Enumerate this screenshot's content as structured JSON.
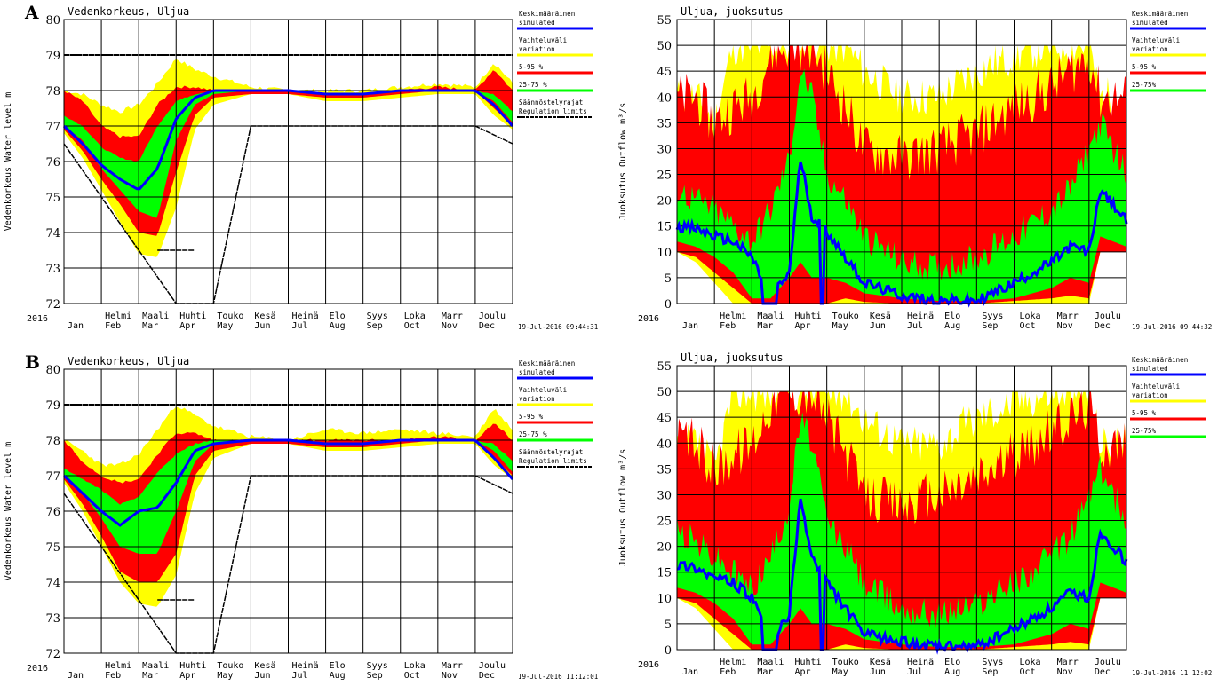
{
  "colors": {
    "variation": "#ffff00",
    "p5_95": "#ff0000",
    "p25_75": "#00ff00",
    "simulated": "#0000ff",
    "limits": "#000000",
    "grid": "#000000"
  },
  "months": [
    {
      "fi": "",
      "en": "Jan"
    },
    {
      "fi": "Helmi",
      "en": "Feb"
    },
    {
      "fi": "Maali",
      "en": "Mar"
    },
    {
      "fi": "Huhti",
      "en": "Apr"
    },
    {
      "fi": "Touko",
      "en": "May"
    },
    {
      "fi": "Kesä",
      "en": "Jun"
    },
    {
      "fi": "Heinä",
      "en": "Jul"
    },
    {
      "fi": "Elo",
      "en": "Aug"
    },
    {
      "fi": "Syys",
      "en": "Sep"
    },
    {
      "fi": "Loka",
      "en": "Oct"
    },
    {
      "fi": "Marr",
      "en": "Nov"
    },
    {
      "fi": "Joulu",
      "en": "Dec"
    }
  ],
  "year_label": "2016",
  "legend": {
    "mean_fi": "Keskimääräinen",
    "mean_en": "simulated",
    "variation_fi": "Vaihteluväli",
    "variation_en": "variation",
    "p5_95": "5-95 %",
    "p25_75": "25-75 %",
    "p25_75_flow": "25-75%",
    "limits_fi": "Säännöstelyrajat",
    "limits_en": "Regulation limits"
  },
  "panels": [
    {
      "letter": "A",
      "level_timestamp": "19-Jul-2016 09:44:31",
      "flow_timestamp": "19-Jul-2016 09:44:32"
    },
    {
      "letter": "B",
      "level_timestamp": "19-Jul-2016 11:12:01",
      "flow_timestamp": "19-Jul-2016 11:12:02"
    }
  ],
  "chart_data": [
    {
      "type": "area",
      "panel": "A",
      "title": "Vedenkorkeus, Uljua",
      "ylabel": "Vedenkorkeus Water level m",
      "ylim": [
        72,
        80
      ],
      "yticks": [
        72,
        73,
        74,
        75,
        76,
        77,
        78,
        79,
        80
      ],
      "grid": true,
      "legend_position": "right",
      "x_months": [
        0,
        0.5,
        1,
        1.5,
        2,
        2.5,
        3,
        3.5,
        4,
        5,
        6,
        7,
        8,
        9,
        10,
        11,
        11.5,
        12
      ],
      "bands": {
        "variation": {
          "upper": [
            78.0,
            77.9,
            77.6,
            77.4,
            77.6,
            78.2,
            78.9,
            78.6,
            78.4,
            78.1,
            78.0,
            78.0,
            78.0,
            78.1,
            78.2,
            78.1,
            78.8,
            78.2
          ],
          "lower": [
            76.8,
            76.1,
            75.2,
            74.3,
            73.4,
            73.3,
            74.7,
            76.9,
            77.6,
            77.9,
            77.9,
            77.7,
            77.7,
            77.8,
            77.9,
            77.9,
            77.3,
            76.9
          ]
        },
        "p5_95": {
          "upper": [
            78.0,
            77.7,
            77.0,
            76.7,
            76.7,
            77.6,
            78.1,
            78.1,
            78.0,
            78.0,
            78.0,
            77.9,
            77.9,
            78.0,
            78.1,
            78.0,
            78.6,
            78.0
          ],
          "lower": [
            76.9,
            76.3,
            75.5,
            74.8,
            74.0,
            73.9,
            75.7,
            77.3,
            77.8,
            77.9,
            77.9,
            77.8,
            77.8,
            77.9,
            78.0,
            78.0,
            77.5,
            77.0
          ]
        },
        "p25_75": {
          "upper": [
            77.3,
            77.0,
            76.4,
            76.1,
            76.0,
            77.0,
            77.7,
            77.9,
            78.0,
            78.0,
            78.0,
            77.9,
            77.9,
            78.0,
            78.0,
            78.0,
            77.9,
            77.4
          ],
          "lower": [
            77.0,
            76.6,
            75.8,
            75.2,
            74.6,
            74.4,
            76.6,
            77.6,
            77.9,
            78.0,
            78.0,
            77.9,
            77.9,
            78.0,
            78.0,
            78.0,
            77.7,
            77.1
          ]
        }
      },
      "simulated": [
        77.0,
        76.5,
        75.9,
        75.5,
        75.2,
        75.8,
        77.2,
        77.8,
        78.0,
        78.0,
        78.0,
        77.9,
        77.9,
        78.0,
        78.0,
        78.0,
        77.6,
        77.0
      ],
      "regulation_upper": {
        "x": [
          0,
          12
        ],
        "y": [
          79,
          79
        ]
      },
      "regulation_lower": [
        {
          "x": [
            0,
            3,
            4,
            5
          ],
          "y": [
            76.5,
            72,
            72,
            77
          ]
        },
        {
          "x": [
            5,
            11,
            12
          ],
          "y": [
            77,
            77,
            76.5
          ]
        },
        {
          "x": [
            2.5,
            3.5
          ],
          "y": [
            73.5,
            73.5
          ]
        }
      ]
    },
    {
      "type": "area",
      "panel": "A",
      "title": "Uljua, juoksutus",
      "ylabel": "Juoksutus Outflow m³/s",
      "ylim": [
        0,
        55
      ],
      "yticks": [
        0,
        5,
        10,
        15,
        20,
        25,
        30,
        35,
        40,
        45,
        50,
        55
      ],
      "grid": true,
      "legend_position": "right",
      "x_months": [
        0,
        0.5,
        1,
        1.5,
        2,
        2.5,
        3,
        3.3,
        3.6,
        4,
        4.5,
        5,
        6,
        7,
        8,
        9,
        10,
        10.5,
        11,
        11.3,
        12
      ],
      "bands": {
        "variation": {
          "upper": [
            40,
            40,
            35,
            50,
            50,
            50,
            50,
            50,
            50,
            50,
            50,
            45,
            40,
            40,
            45,
            48,
            50,
            50,
            50,
            40,
            40
          ],
          "lower": [
            10,
            8,
            4,
            0,
            0,
            0,
            0,
            0,
            0,
            0,
            0,
            0,
            0,
            0,
            0,
            0,
            0,
            0,
            0,
            10,
            10
          ]
        },
        "p5_95": {
          "upper": [
            40,
            40,
            35,
            38,
            40,
            48,
            50,
            50,
            50,
            45,
            38,
            30,
            28,
            30,
            33,
            38,
            42,
            45,
            48,
            40,
            40
          ],
          "lower": [
            10,
            9,
            6,
            3,
            0,
            0,
            0,
            0,
            0,
            0,
            1,
            0.3,
            0,
            0,
            0,
            0.5,
            1,
            1.5,
            1,
            10,
            10
          ]
        },
        "p25_75": {
          "upper": [
            22,
            20,
            18,
            15,
            12,
            18,
            28,
            45,
            40,
            25,
            20,
            13,
            8,
            7,
            9,
            13,
            18,
            22,
            30,
            35,
            25
          ]
        },
        "p25_75_lower": [
          12,
          11,
          9,
          6,
          1,
          1,
          5,
          8,
          5,
          5,
          4,
          2,
          1,
          0.5,
          0.5,
          1,
          3,
          5,
          4,
          13,
          11
        ]
      },
      "simulated": [
        15,
        14.5,
        13,
        12,
        9,
        1,
        6,
        28,
        17,
        14,
        9,
        4,
        1.5,
        0.5,
        0.5,
        4,
        8,
        11,
        10,
        22,
        16
      ],
      "simulated_note": "drops to ~0 around Mar and early May"
    },
    {
      "type": "area",
      "panel": "B",
      "title": "Vedenkorkeus, Uljua",
      "ylabel": "Vedenkorkeus Water level m",
      "ylim": [
        72,
        80
      ],
      "yticks": [
        72,
        73,
        74,
        75,
        76,
        77,
        78,
        79,
        80
      ],
      "grid": true,
      "legend_position": "right",
      "x_months": [
        0,
        0.5,
        1,
        1.5,
        2,
        2.5,
        3,
        3.5,
        4,
        5,
        6,
        7,
        8,
        9,
        10,
        11,
        11.5,
        12
      ],
      "bands": {
        "variation": {
          "upper": [
            78.0,
            77.7,
            77.3,
            77.3,
            77.6,
            78.3,
            79.0,
            78.7,
            78.4,
            78.1,
            78.0,
            78.3,
            78.2,
            78.3,
            78.2,
            78.1,
            78.9,
            78.3
          ],
          "lower": [
            76.8,
            76.0,
            75.0,
            74.0,
            73.4,
            73.3,
            74.2,
            76.5,
            77.5,
            77.9,
            77.9,
            77.7,
            77.7,
            77.8,
            77.9,
            77.9,
            77.3,
            76.9
          ]
        },
        "p5_95": {
          "upper": [
            78.0,
            77.4,
            77.0,
            76.8,
            76.9,
            77.6,
            78.2,
            78.2,
            78.0,
            78.0,
            78.0,
            78.0,
            78.0,
            78.0,
            78.1,
            78.0,
            78.5,
            78.0
          ],
          "lower": [
            76.9,
            76.2,
            75.3,
            74.3,
            74.0,
            74.0,
            74.8,
            77.0,
            77.7,
            77.9,
            77.9,
            77.8,
            77.8,
            77.9,
            78.0,
            78.0,
            77.5,
            77.0
          ]
        },
        "p25_75": {
          "upper": [
            77.2,
            76.9,
            76.6,
            76.2,
            76.4,
            77.1,
            77.6,
            77.9,
            78.0,
            78.0,
            78.0,
            77.9,
            77.9,
            78.0,
            78.0,
            78.0,
            77.9,
            77.4
          ],
          "lower": [
            77.0,
            76.5,
            75.8,
            75.0,
            74.8,
            74.8,
            76.0,
            77.4,
            77.9,
            78.0,
            78.0,
            77.9,
            77.9,
            78.0,
            78.0,
            78.0,
            77.7,
            77.1
          ]
        }
      },
      "simulated": [
        77.0,
        76.5,
        76.0,
        75.6,
        76.0,
        76.1,
        76.8,
        77.7,
        77.9,
        78.0,
        78.0,
        77.9,
        77.9,
        78.0,
        78.0,
        78.0,
        77.5,
        76.9
      ],
      "regulation_upper": {
        "x": [
          0,
          12
        ],
        "y": [
          79,
          79
        ]
      },
      "regulation_lower": [
        {
          "x": [
            0,
            3,
            4,
            5
          ],
          "y": [
            76.5,
            72,
            72,
            77
          ]
        },
        {
          "x": [
            5,
            11,
            12
          ],
          "y": [
            77,
            77,
            76.5
          ]
        },
        {
          "x": [
            2.5,
            3.5
          ],
          "y": [
            73.5,
            73.5
          ]
        }
      ]
    },
    {
      "type": "area",
      "panel": "B",
      "title": "Uljua, juoksutus",
      "ylabel": "Juoksutus Outflow m³/s",
      "ylim": [
        0,
        55
      ],
      "yticks": [
        0,
        5,
        10,
        15,
        20,
        25,
        30,
        35,
        40,
        45,
        50,
        55
      ],
      "grid": true,
      "legend_position": "right",
      "x_months": [
        0,
        0.5,
        1,
        1.5,
        2,
        2.5,
        3,
        3.3,
        3.6,
        4,
        4.5,
        5,
        6,
        7,
        8,
        9,
        10,
        10.5,
        11,
        11.3,
        12
      ],
      "bands": {
        "variation": {
          "upper": [
            40,
            40,
            35,
            50,
            50,
            50,
            50,
            50,
            50,
            50,
            50,
            45,
            40,
            40,
            45,
            48,
            50,
            50,
            50,
            40,
            40
          ],
          "lower": [
            10,
            8,
            4,
            0,
            0,
            0,
            0,
            0,
            0,
            0,
            0,
            0,
            0,
            0,
            0,
            0,
            0,
            0,
            0,
            10,
            10
          ]
        },
        "p5_95": {
          "upper": [
            40,
            40,
            35,
            38,
            40,
            48,
            50,
            50,
            50,
            45,
            38,
            30,
            28,
            30,
            33,
            38,
            42,
            45,
            48,
            40,
            40
          ],
          "lower": [
            10,
            9,
            6,
            3,
            0,
            0,
            0,
            0,
            0,
            0,
            1,
            0.3,
            0,
            0,
            0,
            0.5,
            1,
            1.5,
            1,
            10,
            10
          ]
        },
        "p25_75": {
          "upper": [
            23,
            21,
            18,
            15,
            12,
            18,
            28,
            45,
            40,
            25,
            20,
            13,
            8,
            7,
            9,
            13,
            18,
            22,
            30,
            35,
            25
          ]
        },
        "p25_75_lower": [
          12,
          11,
          9,
          6,
          1,
          1,
          5,
          8,
          5,
          5,
          4,
          2,
          1,
          0.5,
          0.5,
          1,
          3,
          5,
          4,
          13,
          11
        ]
      },
      "simulated": [
        16.5,
        16,
        14,
        13,
        10,
        1,
        7,
        29,
        18,
        13,
        8,
        3,
        1.5,
        0.5,
        0.5,
        4,
        8,
        11,
        10,
        23,
        17
      ]
    }
  ]
}
